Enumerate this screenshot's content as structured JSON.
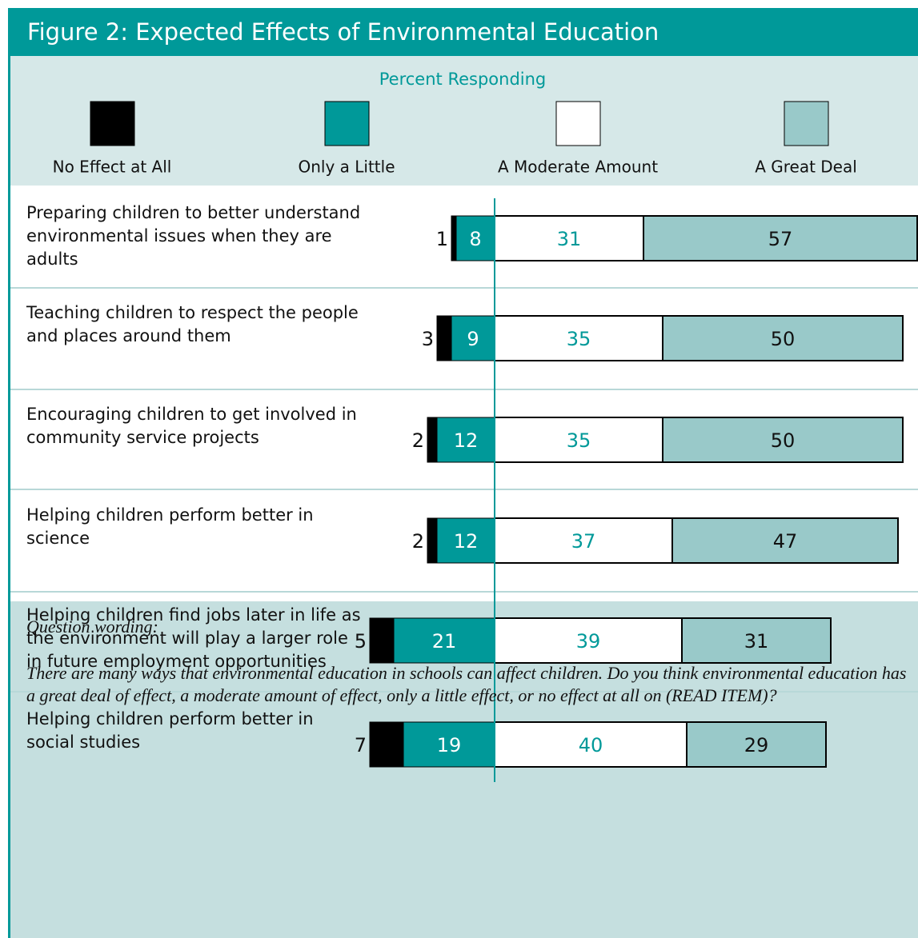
{
  "chart_data": {
    "type": "bar",
    "title": "Figure 2: Expected Effects of Environmental Education",
    "subtitle": "Percent Responding",
    "categories": [
      "Preparing children to better understand environmental issues when they are adults",
      "Teaching children to respect the people and places around them",
      "Encouraging children to get involved in community service projects",
      "Helping children perform better in science",
      "Helping children find jobs later in life as the environment will play a larger role in future employment opportunities",
      "Helping children perform better in social studies"
    ],
    "series": [
      {
        "name": "No Effect at All",
        "color": "#000000",
        "values": [
          1,
          3,
          2,
          2,
          5,
          7
        ]
      },
      {
        "name": "Only a Little",
        "color": "#009999",
        "values": [
          8,
          9,
          12,
          12,
          21,
          19
        ]
      },
      {
        "name": "A Moderate Amount",
        "color": "#ffffff",
        "values": [
          31,
          35,
          35,
          37,
          39,
          40
        ]
      },
      {
        "name": "A Great Deal",
        "color": "#99c9c9",
        "values": [
          57,
          50,
          50,
          47,
          31,
          29
        ]
      }
    ]
  },
  "footer": {
    "heading": "Question wording:",
    "text": "There are many ways that environmental education in schools can affect children. Do you think environmental education has a great deal of effect, a moderate amount of effect, only a little effect, or no effect at all on (READ ITEM)?"
  }
}
